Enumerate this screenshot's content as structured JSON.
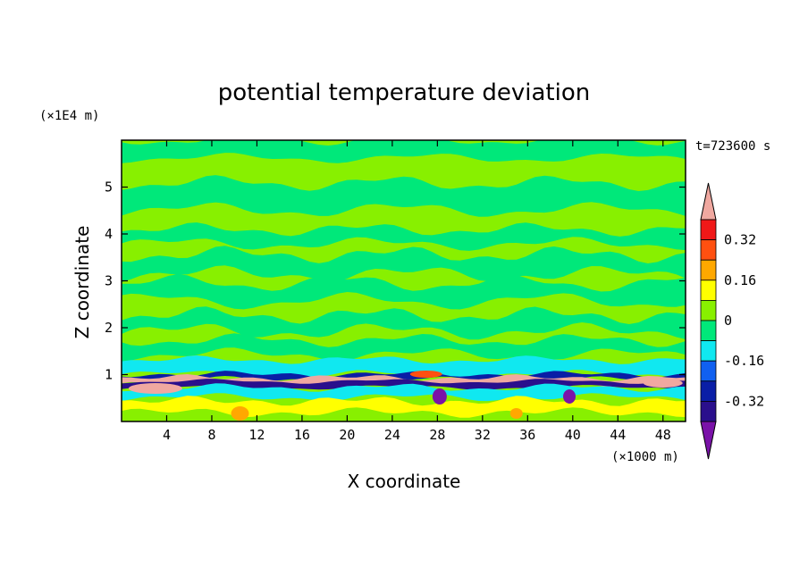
{
  "chart_data": {
    "type": "heatmap",
    "title": "potential temperature deviation",
    "xlabel": "X coordinate",
    "ylabel": "Z coordinate",
    "x_unit": "(×1000 m)",
    "y_unit": "(×1E4 m)",
    "time_label": "t=723600 s",
    "xlim": [
      0,
      50
    ],
    "ylim": [
      0,
      0.6
    ],
    "x_ticks": [
      "4",
      "8",
      "12",
      "16",
      "20",
      "24",
      "28",
      "32",
      "36",
      "40",
      "44",
      "48"
    ],
    "y_ticks": [
      "1",
      "2",
      "3",
      "4",
      "5"
    ],
    "colorbar": {
      "levels": [
        -0.4,
        -0.32,
        -0.24,
        -0.16,
        -0.08,
        0,
        0.08,
        0.16,
        0.24,
        0.32,
        0.4
      ],
      "tick_labels": [
        "-0.32",
        "-0.16",
        "0",
        "0.16",
        "0.32"
      ],
      "colors": [
        "#7a12a8",
        "#2a0f8c",
        "#0a1ea6",
        "#1060f0",
        "#10e8f0",
        "#00e87a",
        "#88f000",
        "#ffff00",
        "#ffa800",
        "#ff5010",
        "#f01818",
        "#f0a8a0"
      ]
    },
    "field_description": "Upper domain alternates between ~0 (green) and slightly positive (yellow-green) layered bands; a thin strongly perturbed layer near z≈0.08×1E4 m with alternating negative (blue/purple) and positive (red/pink) values; weak mixed values below."
  }
}
